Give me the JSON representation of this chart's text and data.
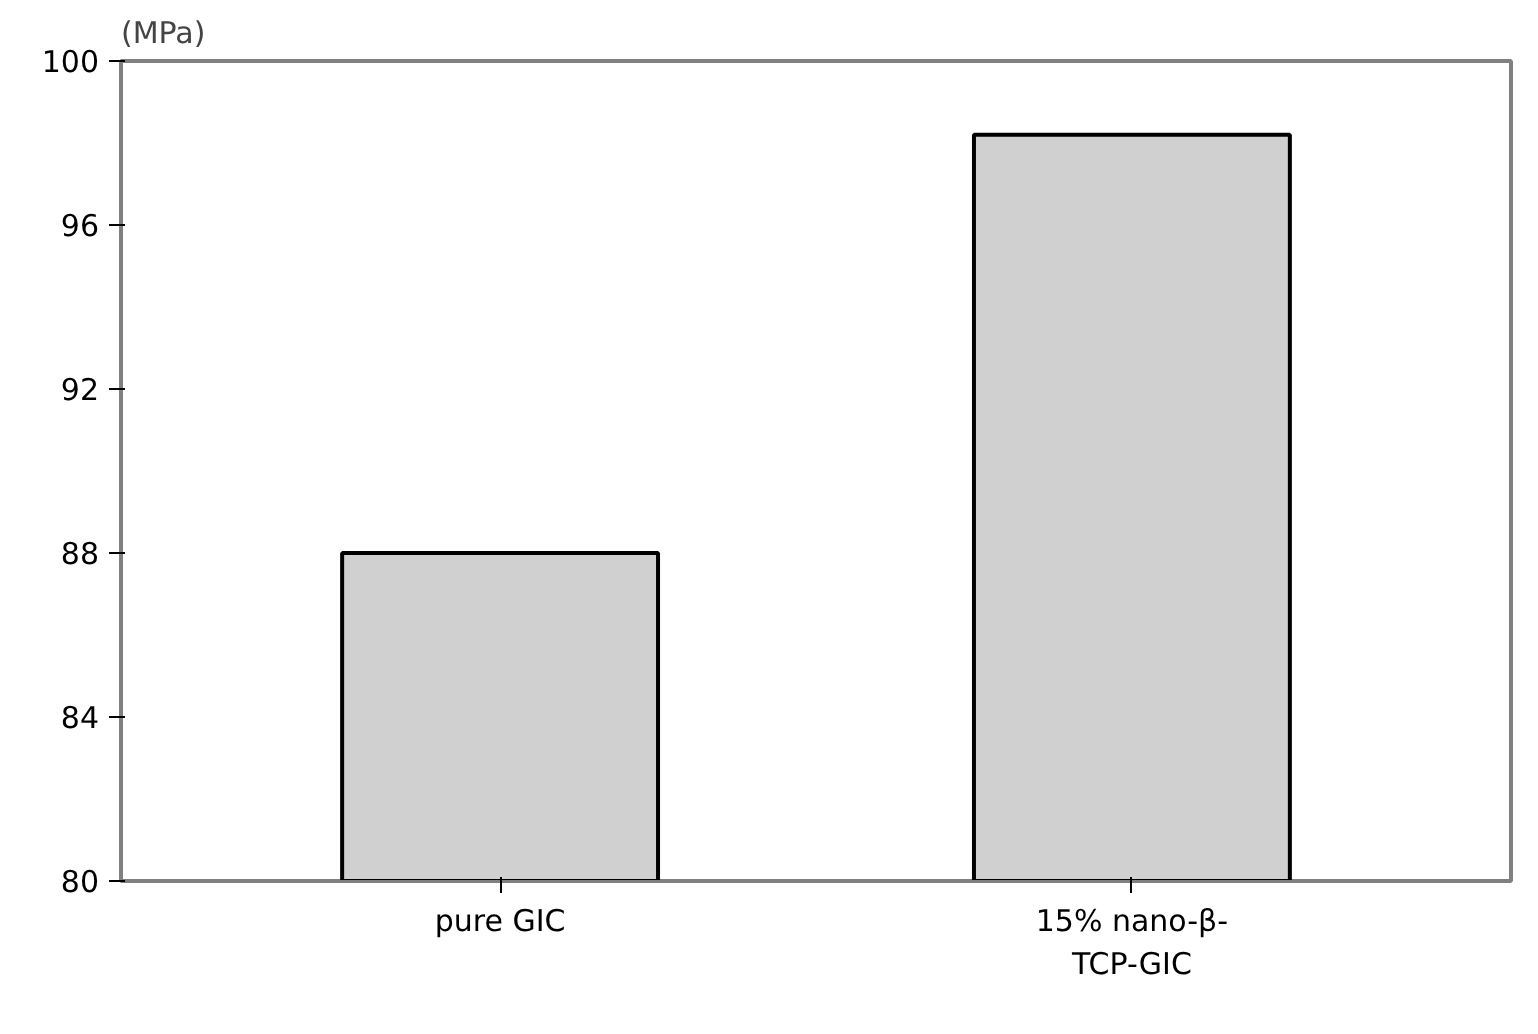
{
  "chart_data": {
    "type": "bar",
    "ylabel": "(MPa)",
    "categories": [
      "pure GIC",
      "15% nano-β-TCP-GIC"
    ],
    "values": [
      88,
      98.2
    ],
    "color": "#d0d0d0",
    "ylim": [
      80,
      100
    ],
    "yticks": [
      80,
      84,
      88,
      92,
      96,
      100
    ],
    "grid": false
  }
}
